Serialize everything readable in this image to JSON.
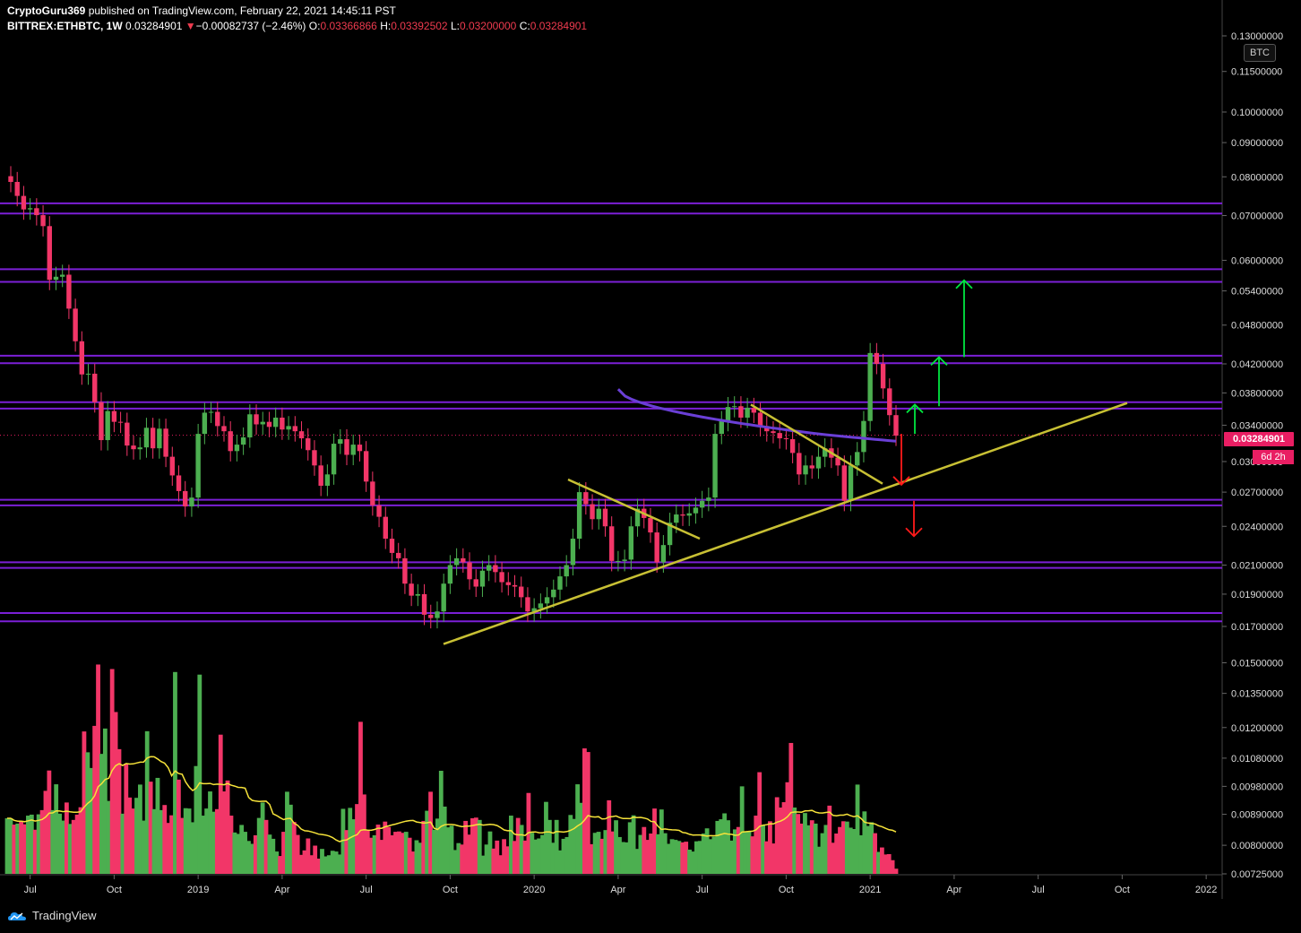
{
  "header": {
    "author": "CryptoGuru369",
    "published_text": " published on TradingView.com, February 22, 2021 14:45:11 PST",
    "symbol": "BITTREX:ETHBTC, 1W",
    "last": "0.03284901",
    "change": "−0.00082737 (−2.46%)",
    "o_label": "O:",
    "o": "0.03366866",
    "h_label": "H:",
    "h": "0.03392502",
    "l_label": "L:",
    "l": "0.03200000",
    "c_label": "C:",
    "c": "0.03284901"
  },
  "price_scale": {
    "unit": "BTC",
    "current_price": "0.03284901",
    "countdown": "6d 2h"
  },
  "footer": {
    "brand": "TradingView"
  },
  "colors": {
    "up": "#4caf50",
    "down": "#f23668",
    "level_lines": "#7b1fd6",
    "trendline": "#c8c034",
    "ma_line": "#6a3fd6",
    "volume_ma": "#f6e33a",
    "arrow_up": "#00e640",
    "arrow_down": "#ff1a1a"
  },
  "chart_data": {
    "type": "candlestick",
    "scale": "log",
    "ylim": [
      0.00725,
      0.13
    ],
    "y_ticks": [
      "0.13000000",
      "0.11500000",
      "0.10000000",
      "0.09000000",
      "0.08000000",
      "0.07000000",
      "0.06000000",
      "0.05400000",
      "0.04800000",
      "0.04200000",
      "0.03800000",
      "0.03400000",
      "0.03000000",
      "0.02700000",
      "0.02400000",
      "0.02100000",
      "0.01900000",
      "0.01700000",
      "0.01500000",
      "0.01350000",
      "0.01200000",
      "0.01080000",
      "0.00980000",
      "0.00890000",
      "0.00800000",
      "0.00725000"
    ],
    "x_ticks": [
      "Jul",
      "Oct",
      "2019",
      "Apr",
      "Jul",
      "Oct",
      "2020",
      "Apr",
      "Jul",
      "Oct",
      "2021",
      "Apr",
      "Jul",
      "Oct",
      "2022"
    ],
    "horizontal_levels": [
      0.073,
      0.0705,
      0.0582,
      0.0557,
      0.0432,
      0.0421,
      0.0368,
      0.036,
      0.0263,
      0.0258,
      0.0212,
      0.0208,
      0.0178,
      0.0173
    ],
    "closes": [
      0.0786,
      0.0749,
      0.0715,
      0.0718,
      0.0701,
      0.0675,
      0.0561,
      0.0567,
      0.0571,
      0.0508,
      0.0454,
      0.0405,
      0.0406,
      0.0368,
      0.0323,
      0.0357,
      0.0344,
      0.0343,
      0.0317,
      0.0313,
      0.0315,
      0.0337,
      0.0314,
      0.0336,
      0.0305,
      0.0286,
      0.0271,
      0.0257,
      0.0265,
      0.033,
      0.0355,
      0.0356,
      0.0339,
      0.0333,
      0.0311,
      0.0318,
      0.0326,
      0.0353,
      0.0341,
      0.0344,
      0.0338,
      0.0349,
      0.0335,
      0.0339,
      0.0333,
      0.0325,
      0.0312,
      0.0296,
      0.0276,
      0.0287,
      0.0319,
      0.0324,
      0.0307,
      0.0318,
      0.0311,
      0.028,
      0.0258,
      0.0248,
      0.023,
      0.0219,
      0.0215,
      0.0197,
      0.0189,
      0.019,
      0.0177,
      0.0175,
      0.0179,
      0.0197,
      0.021,
      0.0215,
      0.0212,
      0.02,
      0.0195,
      0.0206,
      0.021,
      0.0205,
      0.0198,
      0.0196,
      0.0195,
      0.0188,
      0.0179,
      0.0181,
      0.0184,
      0.0188,
      0.0193,
      0.0202,
      0.021,
      0.023,
      0.027,
      0.0259,
      0.0246,
      0.0255,
      0.024,
      0.0213,
      0.0213,
      0.0214,
      0.024,
      0.0255,
      0.0247,
      0.0235,
      0.0212,
      0.0225,
      0.0243,
      0.025,
      0.0249,
      0.0251,
      0.0256,
      0.0262,
      0.0265,
      0.033,
      0.0345,
      0.0362,
      0.0363,
      0.0349,
      0.0361,
      0.0355,
      0.0339,
      0.0333,
      0.0331,
      0.0325,
      0.0324,
      0.0309,
      0.0287,
      0.0296,
      0.0293,
      0.0305,
      0.0314,
      0.0304,
      0.0296,
      0.0262,
      0.0296,
      0.031,
      0.0345,
      0.0436,
      0.042,
      0.0386,
      0.0352,
      0.0328
    ],
    "volumes": [
      0.00878,
      0.00878,
      0.00859,
      0.00862,
      0.0087,
      0.0086,
      0.00886,
      0.00889,
      0.00844,
      0.0089,
      0.00903,
      0.00965,
      0.01035,
      0.00903,
      0.00987,
      0.00892,
      0.00871,
      0.00927,
      0.00861,
      0.00873,
      0.00889,
      0.00912,
      0.01184,
      0.01102,
      0.01044,
      0.01207,
      0.01491,
      0.01096,
      0.01196,
      0.00932,
      0.01468,
      0.01266,
      0.01114,
      0.00892,
      0.0106,
      0.00943,
      0.00908,
      0.00942,
      0.00986,
      0.00871,
      0.01185,
      0.00996,
      0.00906,
      0.01009,
      0.00903,
      0.00919,
      0.00864,
      0.00887,
      0.01453,
      0.01003,
      0.00879,
      0.00909,
      0.00908,
      0.00866,
      0.01051,
      0.0144,
      0.00886,
      0.00908,
      0.00963,
      0.00898,
      0.00906,
      0.01171,
      0.00963,
      0.01,
      0.00886,
      0.00836,
      0.00832,
      0.00858,
      0.00838,
      0.00812,
      0.00804,
      0.00828,
      0.00879,
      0.00927,
      0.00873,
      0.0083,
      0.00818,
      0.00783,
      0.00771,
      0.00838,
      0.00962,
      0.0092,
      0.00867,
      0.00829,
      0.00774,
      0.00786,
      0.00819,
      0.00773,
      0.00799,
      0.00764,
      0.0079,
      0.0077,
      0.00773,
      0.00785,
      0.00783,
      0.00775,
      0.00907,
      0.00843,
      0.0091,
      0.00875,
      0.00922,
      0.01224,
      0.00953,
      0.00841,
      0.00821,
      0.00828,
      0.00859,
      0.00815,
      0.00868,
      0.00852,
      0.00828,
      0.00838,
      0.00839,
      0.00835,
      0.00838,
      0.00821,
      0.00783,
      0.00814,
      0.00807,
      0.0087,
      0.00901,
      0.00962,
      0.00844,
      0.00877,
      0.01034,
      0.00914,
      0.00851,
      0.00856,
      0.00787,
      0.00806,
      0.00802,
      0.0087,
      0.0083,
      0.00878,
      0.0088,
      0.00873,
      0.00772,
      0.00802,
      0.00839,
      0.00791,
      0.00813,
      0.00773,
      0.00817,
      0.00797,
      0.00886,
      0.00812,
      0.00879,
      0.00858,
      0.00813,
      0.00958,
      0.00835,
      0.00816,
      0.00819,
      0.00829,
      0.00929,
      0.00873,
      0.00807,
      0.00873,
      0.00786,
      0.00818,
      0.00823,
      0.00888,
      0.00876,
      0.00987,
      0.00926,
      0.01117,
      0.01103,
      0.00803,
      0.00835,
      0.00838,
      0.00818,
      0.00843,
      0.00934,
      0.00839,
      0.00872,
      0.00823,
      0.00809,
      0.00808,
      0.00866,
      0.00887,
      0.0079,
      0.00829,
      0.00852,
      0.00815,
      0.00833,
      0.00908,
      0.00831,
      0.00905,
      0.00834,
      0.00804,
      0.00817,
      0.00815,
      0.00812,
      0.00808,
      0.0081,
      0.00788,
      0.00783,
      0.00811,
      0.00812,
      0.00833,
      0.00848,
      0.00817,
      0.00824,
      0.0087,
      0.00875,
      0.00893,
      0.00872,
      0.00813,
      0.00845,
      0.00852,
      0.0098,
      0.00839,
      0.00839,
      0.00825,
      0.00886,
      0.01029,
      0.00858,
      0.00811,
      0.00869,
      0.00805,
      0.00944,
      0.00911,
      0.00928,
      0.00994,
      0.01138,
      0.00911,
      0.00891,
      0.00862,
      0.00894,
      0.00857,
      0.00872,
      0.00862,
      0.00796,
      0.00834,
      0.00858,
      0.00917,
      0.00807,
      0.00833,
      0.00852,
      0.00869,
      0.00868,
      0.0085,
      0.00846,
      0.00986,
      0.00828,
      0.00899,
      0.00855,
      0.00866,
      0.00834,
      0.00782,
      0.00794,
      0.00775,
      0.00776,
      0.0076,
      0.00738
    ],
    "ma_line": {
      "from_price": 0.0385,
      "to_price": 0.032
    },
    "volume_ma_note": ""
  }
}
